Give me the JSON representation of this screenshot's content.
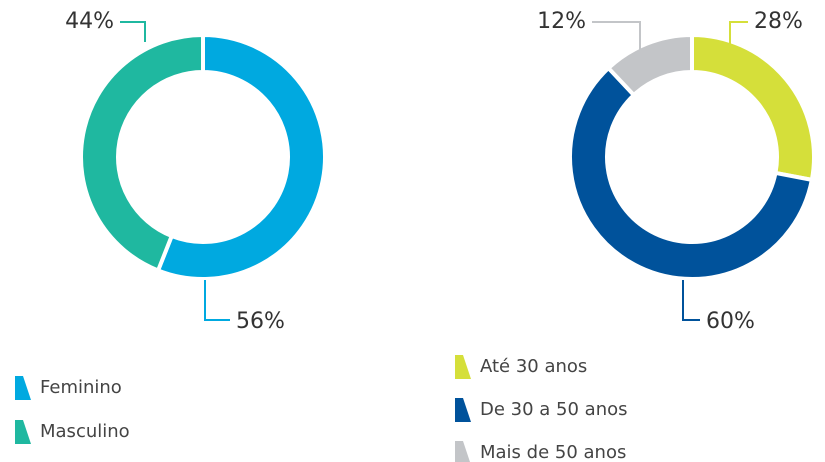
{
  "chart_data": [
    {
      "type": "pie",
      "donut": true,
      "categories": [
        "Feminino",
        "Masculino"
      ],
      "values": [
        56,
        44
      ],
      "value_labels": [
        "56%",
        "44%"
      ],
      "colors": [
        "#00a9e0",
        "#1fb8a0"
      ]
    },
    {
      "type": "pie",
      "donut": true,
      "categories": [
        "Até 30 anos",
        "De 30 a 50 anos",
        "Mais de 50 anos"
      ],
      "values": [
        28,
        60,
        12
      ],
      "value_labels": [
        "28%",
        "60%",
        "12%"
      ],
      "colors": [
        "#d5df3a",
        "#00529b",
        "#c3c5c8"
      ]
    }
  ]
}
